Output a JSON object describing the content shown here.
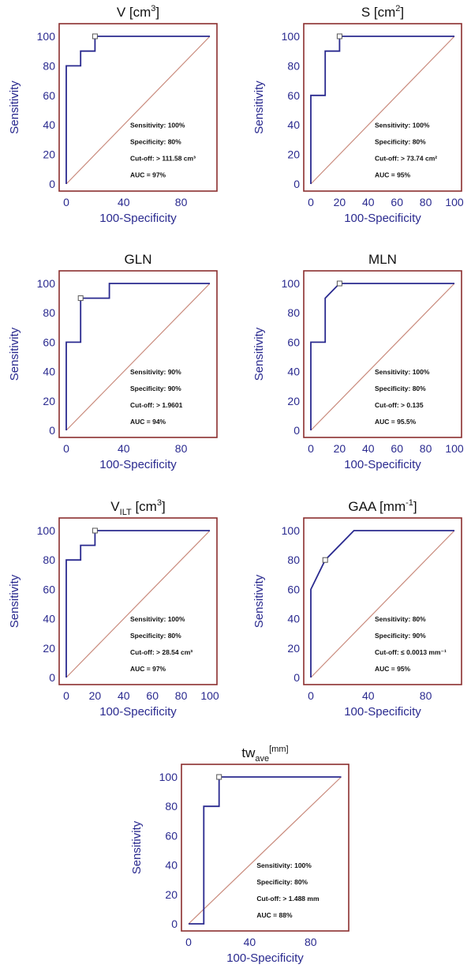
{
  "colors": {
    "frame": "#8b2e2e",
    "roc_curve": "#2a2a8f",
    "diagonal": "#c98a7c",
    "axis_text": "#2a2a8f"
  },
  "chart_data": [
    {
      "type": "line",
      "title": {
        "base": "V [cm",
        "sup": "3",
        "tail": "]"
      },
      "xlabel": "100-Specificity",
      "ylabel": "Sensitivity",
      "xlim": [
        0,
        100
      ],
      "ylim": [
        0,
        100
      ],
      "x_ticks": [
        "0",
        "40",
        "80"
      ],
      "y_ticks": [
        "0",
        "20",
        "40",
        "60",
        "80",
        "100"
      ],
      "grid": false,
      "series": [
        {
          "x": [
            0,
            0,
            10,
            10,
            20,
            20,
            100
          ],
          "y": [
            0,
            80,
            80,
            90,
            90,
            100,
            100
          ]
        }
      ],
      "cutoff_point": {
        "x": 20,
        "y": 100
      },
      "stats": [
        "Sensitivity: 100%",
        "Specificity: 80%",
        "Cut-off: > 111.58 cm³",
        "AUC = 97%"
      ]
    },
    {
      "type": "line",
      "title": {
        "base": "S [cm",
        "sup": "2",
        "tail": "]"
      },
      "xlabel": "100-Specificity",
      "ylabel": "Sensitivity",
      "xlim": [
        0,
        100
      ],
      "ylim": [
        0,
        100
      ],
      "x_ticks": [
        "0",
        "20",
        "40",
        "60",
        "80",
        "100"
      ],
      "y_ticks": [
        "0",
        "20",
        "40",
        "60",
        "80",
        "100"
      ],
      "grid": false,
      "series": [
        {
          "x": [
            0,
            0,
            10,
            10,
            20,
            20,
            100
          ],
          "y": [
            0,
            60,
            60,
            90,
            90,
            100,
            100
          ]
        }
      ],
      "cutoff_point": {
        "x": 20,
        "y": 100
      },
      "stats": [
        "Sensitivity: 100%",
        "Specificity: 80%",
        "Cut-off: > 73.74 cm²",
        "AUC = 95%"
      ]
    },
    {
      "type": "line",
      "title": {
        "base": "GLN",
        "sup": "",
        "tail": ""
      },
      "xlabel": "100-Specificity",
      "ylabel": "Sensitivity",
      "xlim": [
        0,
        100
      ],
      "ylim": [
        0,
        100
      ],
      "x_ticks": [
        "0",
        "40",
        "80"
      ],
      "y_ticks": [
        "0",
        "20",
        "40",
        "60",
        "80",
        "100"
      ],
      "grid": false,
      "series": [
        {
          "x": [
            0,
            0,
            10,
            10,
            30,
            30,
            100
          ],
          "y": [
            0,
            60,
            60,
            90,
            90,
            100,
            100
          ]
        }
      ],
      "cutoff_point": {
        "x": 10,
        "y": 90
      },
      "stats": [
        "Sensitivity: 90%",
        "Specificity: 90%",
        "Cut-off: > 1.9601",
        "AUC = 94%"
      ]
    },
    {
      "type": "line",
      "title": {
        "base": "MLN",
        "sup": "",
        "tail": ""
      },
      "xlabel": "100-Specificity",
      "ylabel": "Sensitivity",
      "xlim": [
        0,
        100
      ],
      "ylim": [
        0,
        100
      ],
      "x_ticks": [
        "0",
        "20",
        "40",
        "60",
        "80",
        "100"
      ],
      "y_ticks": [
        "0",
        "20",
        "40",
        "60",
        "80",
        "100"
      ],
      "grid": false,
      "series": [
        {
          "x": [
            0,
            0,
            10,
            10,
            20,
            100
          ],
          "y": [
            0,
            60,
            60,
            90,
            100,
            100
          ]
        }
      ],
      "cutoff_point": {
        "x": 20,
        "y": 100
      },
      "stats": [
        "Sensitivity: 100%",
        "Specificity: 80%",
        "Cut-off: > 0.135",
        "AUC = 95.5%"
      ]
    },
    {
      "type": "line",
      "title": {
        "base": "V",
        "sub": "ILT",
        "base2": " [cm",
        "sup": "3",
        "tail": "]"
      },
      "xlabel": "100-Specificity",
      "ylabel": "Sensitivity",
      "xlim": [
        0,
        100
      ],
      "ylim": [
        0,
        100
      ],
      "x_ticks": [
        "0",
        "20",
        "40",
        "60",
        "80",
        "100"
      ],
      "y_ticks": [
        "0",
        "20",
        "40",
        "60",
        "80",
        "100"
      ],
      "grid": false,
      "series": [
        {
          "x": [
            0,
            0,
            10,
            10,
            20,
            20,
            100
          ],
          "y": [
            0,
            80,
            80,
            90,
            90,
            100,
            100
          ]
        }
      ],
      "cutoff_point": {
        "x": 20,
        "y": 100
      },
      "stats": [
        "Sensitivity: 100%",
        "Specificity: 80%",
        "Cut-off: > 28.54 cm³",
        "AUC = 97%"
      ]
    },
    {
      "type": "line",
      "title": {
        "base": "GAA [mm",
        "sup": "-1",
        "tail": "]"
      },
      "xlabel": "100-Specificity",
      "ylabel": "Sensitivity",
      "xlim": [
        0,
        100
      ],
      "ylim": [
        0,
        100
      ],
      "x_ticks": [
        "0",
        "40",
        "80"
      ],
      "y_ticks": [
        "0",
        "20",
        "40",
        "60",
        "80",
        "100"
      ],
      "grid": false,
      "series": [
        {
          "x": [
            0,
            0,
            10,
            30,
            100
          ],
          "y": [
            0,
            60,
            80,
            100,
            100
          ]
        }
      ],
      "cutoff_point": {
        "x": 10,
        "y": 80
      },
      "stats": [
        "Sensitivity: 80%",
        "Specificity: 90%",
        "Cut-off: ≤ 0.0013 mm⁻¹",
        "AUC = 95%"
      ]
    },
    {
      "type": "line",
      "title": {
        "base": "tw",
        "sub": "ave",
        "sup": "[mm]",
        "tail": ""
      },
      "xlabel": "100-Specificity",
      "ylabel": "Sensitivity",
      "xlim": [
        0,
        100
      ],
      "ylim": [
        0,
        100
      ],
      "x_ticks": [
        "0",
        "40",
        "80"
      ],
      "y_ticks": [
        "0",
        "20",
        "40",
        "60",
        "80",
        "100"
      ],
      "grid": false,
      "series": [
        {
          "x": [
            0,
            10,
            10,
            20,
            20,
            100
          ],
          "y": [
            0,
            0,
            80,
            80,
            100,
            100
          ]
        }
      ],
      "cutoff_point": {
        "x": 20,
        "y": 100
      },
      "stats": [
        "Sensitivity: 100%",
        "Specificity: 80%",
        "Cut-off: > 1.488 mm",
        "AUC = 88%"
      ]
    }
  ]
}
